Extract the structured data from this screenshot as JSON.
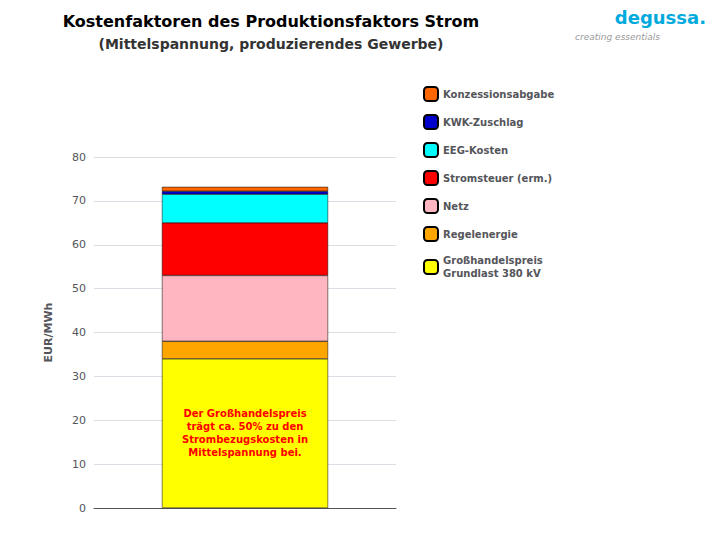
{
  "chart_data": {
    "type": "bar",
    "stacked": true,
    "title": "Kostenfaktoren des Produktionsfaktors Strom",
    "subtitle": "(Mittelspannung, produzierendes Gewerbe)",
    "ylabel": "EUR/MWh",
    "categories": [
      null
    ],
    "series": [
      {
        "name": "Großhandelspreis\nGrundlast 380 kV",
        "color": "#FFFF00",
        "values": [
          34.0
        ]
      },
      {
        "name": "Regelenergie",
        "color": "#FFA500",
        "values": [
          4.0
        ]
      },
      {
        "name": "Netz",
        "color": "#FFB6C1",
        "values": [
          15.0
        ]
      },
      {
        "name": "Stromsteuer (erm.)",
        "color": "#FF0000",
        "values": [
          12.0
        ]
      },
      {
        "name": "EEG-Kosten",
        "color": "#00FFFF",
        "values": [
          6.5
        ]
      },
      {
        "name": "KWK-Zuschlag",
        "color": "#0000CD",
        "values": [
          0.7
        ]
      },
      {
        "name": "Konzessionsabgabe",
        "color": "#FF6600",
        "values": [
          1.0
        ]
      }
    ],
    "ylim": [
      0,
      80
    ],
    "yticks": [
      0,
      10,
      20,
      30,
      40,
      50,
      60,
      70,
      80
    ],
    "grid": true,
    "legend": "right",
    "tick_labels": "y",
    "annotations": [
      {
        "text": "Der Großhandelspreis\nträgt ca. 50% zu den\nStrombezugskosten in\nMittelspannung bei.",
        "y": 17,
        "color": "#FF0000"
      },
      {
        "text": "degussa.",
        "color": "#00AADD"
      },
      {
        "text": "creating essentials",
        "color": "#999999"
      }
    ]
  }
}
